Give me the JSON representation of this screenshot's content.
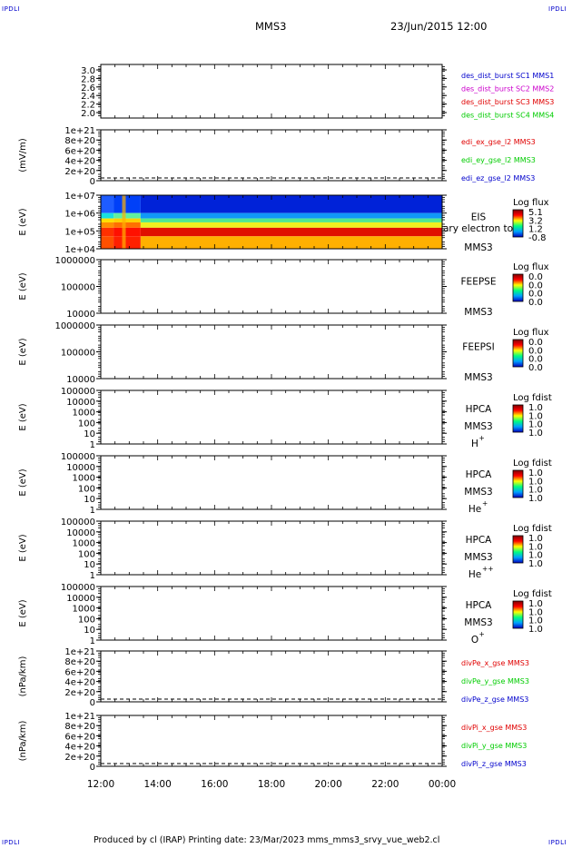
{
  "header": {
    "corner_label": "IPDLI",
    "spacecraft": "MMS3",
    "datetime": "23/Jun/2015 12:00"
  },
  "footer": {
    "text": "Produced by cl (IRAP)   Printing date: 23/Mar/2023   mms_mms3_srvy_vue_web2.cl"
  },
  "colors": {
    "red": "#e00000",
    "green": "#00cc00",
    "blue": "#0000cc",
    "magenta": "#cc00cc",
    "navy": "#000099"
  },
  "chart_data": [
    {
      "type": "line",
      "panel": "des_dist_burst",
      "ylabel": "",
      "yticks": [
        "3.0",
        "2.8",
        "2.6",
        "2.4",
        "2.2",
        "2.0"
      ],
      "ylim": [
        1.9,
        3.1
      ],
      "legend": [
        {
          "text": "des_dist_burst SC1 MMS1",
          "color": "#0000cc"
        },
        {
          "text": "des_dist_burst SC2 MMS2",
          "color": "#cc00cc"
        },
        {
          "text": "des_dist_burst SC3 MMS3",
          "color": "#e00000"
        },
        {
          "text": "des_dist_burst SC4 MMS4",
          "color": "#00cc00"
        }
      ],
      "series": []
    },
    {
      "type": "line",
      "panel": "edi_e",
      "ylabel": "(mV/m)",
      "yticks": [
        "1e+21",
        "8e+20",
        "6e+20",
        "4e+20",
        "2e+20",
        "0"
      ],
      "ylim": [
        0,
        1e+21
      ],
      "zero_line": true,
      "legend": [
        {
          "text": "edi_ex_gse_l2 MMS3",
          "color": "#e00000"
        },
        {
          "text": "edi_ey_gse_l2 MMS3",
          "color": "#00cc00"
        },
        {
          "text": "edi_ez_gse_l2 MMS3",
          "color": "#0000cc"
        }
      ],
      "series": []
    },
    {
      "type": "heatmap",
      "panel": "eis",
      "ylabel": "E (eV)",
      "yticks": [
        "1e+07",
        "1e+06",
        "1e+05",
        "1e+04"
      ],
      "instrument": "EIS",
      "overflow_label": "ary electron to",
      "sc": "MMS3",
      "cbar_title": "Log flux",
      "cbar_ticks": [
        "5.1",
        "3.2",
        "1.2",
        "-0.8"
      ],
      "energy_bands": [
        {
          "from": 1000000.0,
          "to": 10000000.0,
          "pre": "#1e5cff",
          "early": "#0040f8",
          "late": "#0022d8"
        },
        {
          "from": 500000.0,
          "to": 1000000.0,
          "pre": "#18e0e0",
          "early": "#60f0a0",
          "late": "#1098f8"
        },
        {
          "from": 300000.0,
          "to": 500000.0,
          "pre": "#ffe000",
          "early": "#ffd000",
          "late": "#50e890"
        },
        {
          "from": 150000.0,
          "to": 300000.0,
          "pre": "#ff9000",
          "early": "#ff7000",
          "late": "#f0f020"
        },
        {
          "from": 50000.0,
          "to": 150000.0,
          "pre": "#ff3000",
          "early": "#ff1000",
          "late": "#e01000"
        },
        {
          "from": 10000.0,
          "to": 50000.0,
          "pre": "#ff5000",
          "early": "#ff2000",
          "late": "#ffb000"
        }
      ]
    },
    {
      "type": "heatmap",
      "panel": "feeps_e",
      "ylabel": "E (eV)",
      "yticks": [
        "1000000",
        "100000",
        "10000"
      ],
      "instrument": "FEEPSE",
      "sc": "MMS3",
      "cbar_title": "Log flux",
      "cbar_ticks": [
        "0.0",
        "0.0",
        "0.0",
        "0.0"
      ]
    },
    {
      "type": "heatmap",
      "panel": "feeps_i",
      "ylabel": "E (eV)",
      "yticks": [
        "1000000",
        "100000",
        "10000"
      ],
      "instrument": "FEEPSI",
      "sc": "MMS3",
      "cbar_title": "Log flux",
      "cbar_ticks": [
        "0.0",
        "0.0",
        "0.0",
        "0.0"
      ]
    },
    {
      "type": "heatmap",
      "panel": "hpca_h",
      "ylabel": "E (eV)",
      "yticks": [
        "100000",
        "10000",
        "1000",
        "100",
        "10",
        "1"
      ],
      "instrument": "HPCA",
      "sc": "MMS3",
      "species": "H",
      "species_sup": "+",
      "cbar_title": "Log fdist",
      "cbar_ticks": [
        "1.0",
        "1.0",
        "1.0",
        "1.0"
      ]
    },
    {
      "type": "heatmap",
      "panel": "hpca_he",
      "ylabel": "E (eV)",
      "yticks": [
        "100000",
        "10000",
        "1000",
        "100",
        "10",
        "1"
      ],
      "instrument": "HPCA",
      "sc": "MMS3",
      "species": "He",
      "species_sup": "+",
      "cbar_title": "Log fdist",
      "cbar_ticks": [
        "1.0",
        "1.0",
        "1.0",
        "1.0"
      ]
    },
    {
      "type": "heatmap",
      "panel": "hpca_hepp",
      "ylabel": "E (eV)",
      "yticks": [
        "100000",
        "10000",
        "1000",
        "100",
        "10",
        "1"
      ],
      "instrument": "HPCA",
      "sc": "MMS3",
      "species": "He",
      "species_sup": "++",
      "cbar_title": "Log fdist",
      "cbar_ticks": [
        "1.0",
        "1.0",
        "1.0",
        "1.0"
      ]
    },
    {
      "type": "heatmap",
      "panel": "hpca_o",
      "ylabel": "E (eV)",
      "yticks": [
        "100000",
        "10000",
        "1000",
        "100",
        "10",
        "1"
      ],
      "instrument": "HPCA",
      "sc": "MMS3",
      "species": "O",
      "species_sup": "+",
      "cbar_title": "Log fdist",
      "cbar_ticks": [
        "1.0",
        "1.0",
        "1.0",
        "1.0"
      ]
    },
    {
      "type": "line",
      "panel": "divpe",
      "ylabel": "(nPa/km)",
      "yticks": [
        "1e+21",
        "8e+20",
        "6e+20",
        "4e+20",
        "2e+20",
        "0"
      ],
      "ylim": [
        0,
        1e+21
      ],
      "zero_line": true,
      "legend": [
        {
          "text": "divPe_x_gse MMS3",
          "color": "#e00000"
        },
        {
          "text": "divPe_y_gse MMS3",
          "color": "#00cc00"
        },
        {
          "text": "divPe_z_gse MMS3",
          "color": "#0000cc"
        }
      ],
      "series": []
    },
    {
      "type": "line",
      "panel": "divpi",
      "ylabel": "(nPa/km)",
      "yticks": [
        "1e+21",
        "8e+20",
        "6e+20",
        "4e+20",
        "2e+20",
        "0"
      ],
      "ylim": [
        0,
        1e+21
      ],
      "zero_line": true,
      "legend": [
        {
          "text": "divPi_x_gse MMS3",
          "color": "#e00000"
        },
        {
          "text": "divPi_y_gse MMS3",
          "color": "#00cc00"
        },
        {
          "text": "divPi_z_gse MMS3",
          "color": "#0000cc"
        }
      ],
      "series": []
    }
  ],
  "time_axis": {
    "labels": [
      "12:00",
      "14:00",
      "16:00",
      "18:00",
      "20:00",
      "22:00",
      "00:00"
    ],
    "range_hours": [
      12,
      24
    ]
  }
}
